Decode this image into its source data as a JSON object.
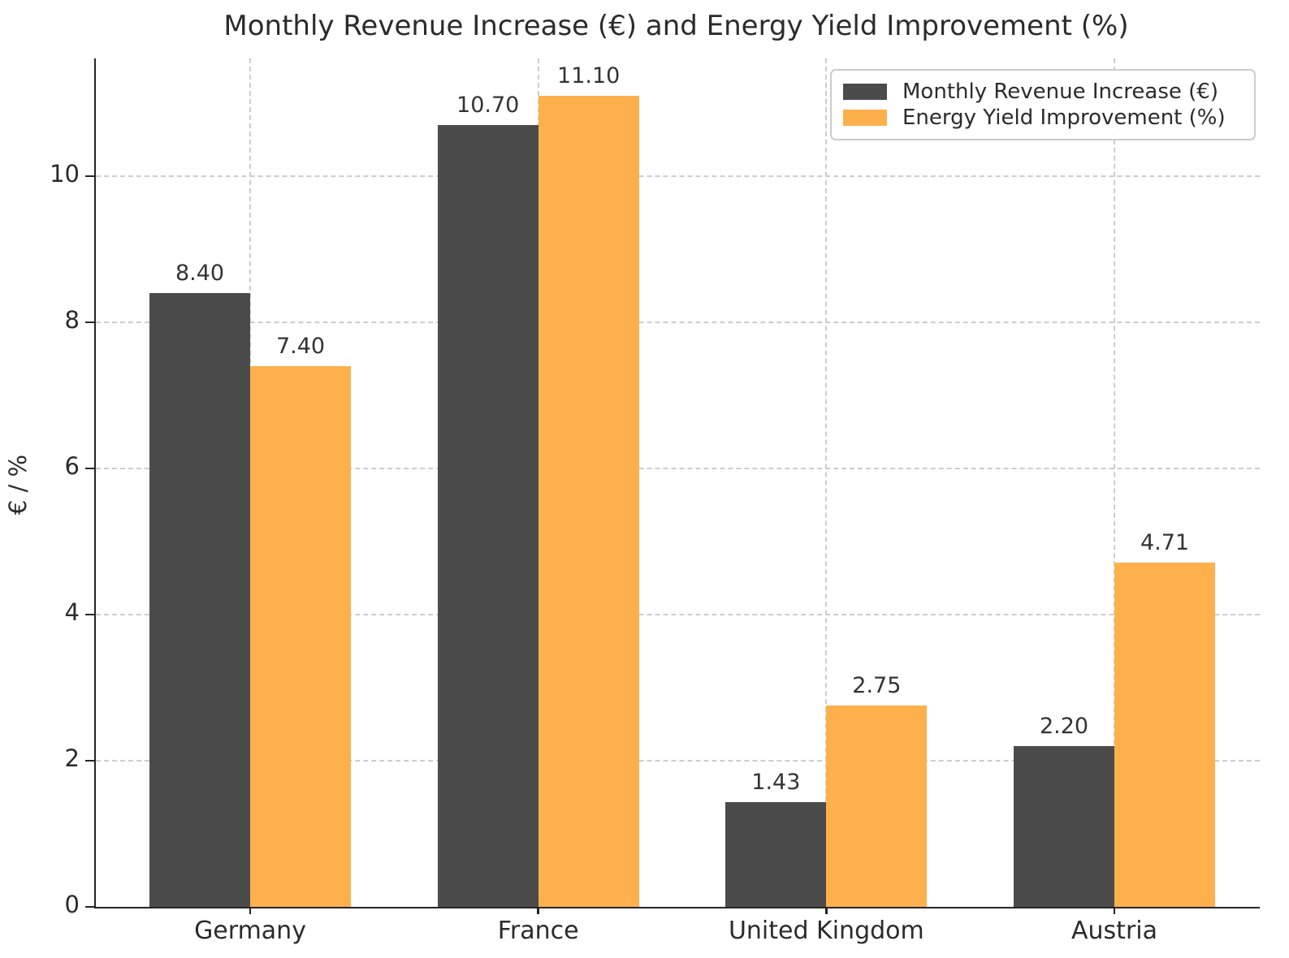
{
  "chart_data": {
    "type": "bar",
    "title": "Monthly Revenue Increase (€) and Energy Yield Improvement (%)",
    "categories": [
      "Germany",
      "France",
      "United Kingdom",
      "Austria"
    ],
    "series": [
      {
        "name": "Monthly Revenue Increase (€)",
        "color": "#4b4b4b",
        "values": [
          8.4,
          10.7,
          1.43,
          2.2
        ]
      },
      {
        "name": "Energy Yield Improvement (%)",
        "color": "#fdb04c",
        "values": [
          7.4,
          11.1,
          2.75,
          4.71
        ]
      }
    ],
    "value_labels": [
      [
        "8.40",
        "10.70",
        "1.43",
        "2.20"
      ],
      [
        "7.40",
        "11.10",
        "2.75",
        "4.71"
      ]
    ],
    "xlabel": "",
    "ylabel": "€ / %",
    "ylim": [
      0,
      11.61
    ],
    "yticks": [
      0,
      2,
      4,
      6,
      8,
      10
    ],
    "grid": true,
    "grid_style": "dashed",
    "legend_position": "upper right",
    "colors": {
      "spine": "#262626",
      "grid": "#cccccc",
      "text": "#2b2b2b",
      "annotation": "#333333",
      "background": "#ffffff"
    }
  }
}
